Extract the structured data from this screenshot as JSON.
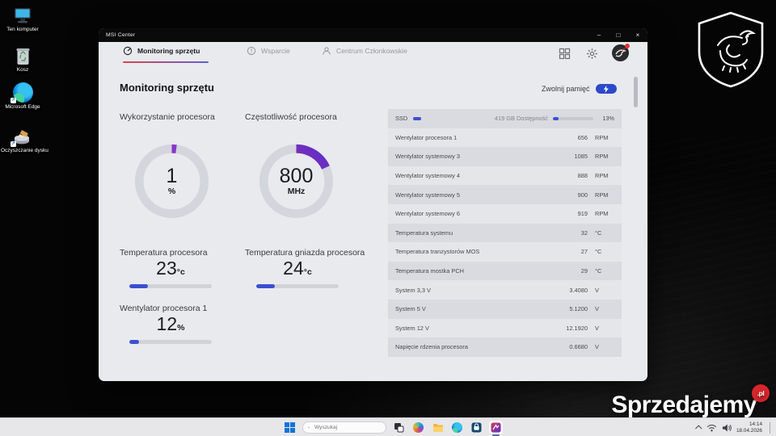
{
  "colors": {
    "accent_blue": "#3b50d2",
    "gauge_pink": "#c2317e",
    "gauge_purple": "#5a2ed0",
    "pill_blue": "#2b49c9",
    "badge_red": "#d7262c",
    "tab_underline_left": "#d8454f",
    "tab_underline_right": "#5f5fd3"
  },
  "desktop": {
    "icons": [
      {
        "label": "Ten komputer"
      },
      {
        "label": "Kosz"
      },
      {
        "label": "Microsoft Edge"
      },
      {
        "label": "Oczyszczanie dysku"
      }
    ]
  },
  "watermark": {
    "text": "Sprzedajemy",
    "badge": ".pl"
  },
  "window": {
    "title": "MSI Center",
    "controls": {
      "minimize": "–",
      "maximize": "□",
      "close": "×"
    },
    "tabs": [
      {
        "label": "Monitoring sprzętu"
      },
      {
        "label": "Wsparcie"
      },
      {
        "label": "Centrum Członkowskie"
      }
    ],
    "header": {
      "title": "Monitoring sprzętu",
      "free_memory_label": "Zwolnij pamięć"
    }
  },
  "monitor": {
    "gauges": [
      {
        "label": "Wykorzystanie procesora",
        "value": "1",
        "unit": "%",
        "fraction": 0.022
      },
      {
        "label": "Częstotliwość procesora",
        "value": "800",
        "unit": "MHz",
        "fraction": 0.18
      }
    ],
    "meters": [
      {
        "label": "Temperatura procesora",
        "value": "23",
        "unit": "°c",
        "percent": 23
      },
      {
        "label": "Temperatura gniazda procesora",
        "value": "24",
        "unit": "°c",
        "percent": 23
      },
      {
        "label": "Wentylator procesora 1",
        "value": "12",
        "unit": "%",
        "percent": 12
      }
    ],
    "ssd": {
      "label": "SSD",
      "availability": "419 GB Dostępność",
      "percent": 13,
      "percent_label": "13%"
    },
    "sensors": [
      {
        "name": "Wentylator procesora 1",
        "value": "656",
        "unit": "RPM"
      },
      {
        "name": "Wentylator systemowy 3",
        "value": "1085",
        "unit": "RPM"
      },
      {
        "name": "Wentylator systemowy 4",
        "value": "888",
        "unit": "RPM"
      },
      {
        "name": "Wentylator systemowy 5",
        "value": "900",
        "unit": "RPM"
      },
      {
        "name": "Wentylator systemowy 6",
        "value": "919",
        "unit": "RPM"
      },
      {
        "name": "Temperatura systemu",
        "value": "32",
        "unit": "°C"
      },
      {
        "name": "Temperatura tranzystorów MOS",
        "value": "27",
        "unit": "°C"
      },
      {
        "name": "Temperatura mostka PCH",
        "value": "29",
        "unit": "°C"
      },
      {
        "name": "System 3,3 V",
        "value": "3.4080",
        "unit": "V"
      },
      {
        "name": "System 5 V",
        "value": "5.1200",
        "unit": "V"
      },
      {
        "name": "System 12 V",
        "value": "12.1920",
        "unit": "V"
      },
      {
        "name": "Napięcie rdzenia procesora",
        "value": "0.6680",
        "unit": "V"
      }
    ]
  },
  "taskbar": {
    "search_placeholder": "Wyszukaj",
    "clock": {
      "time": "14:14",
      "date": "18.04.2026"
    }
  }
}
